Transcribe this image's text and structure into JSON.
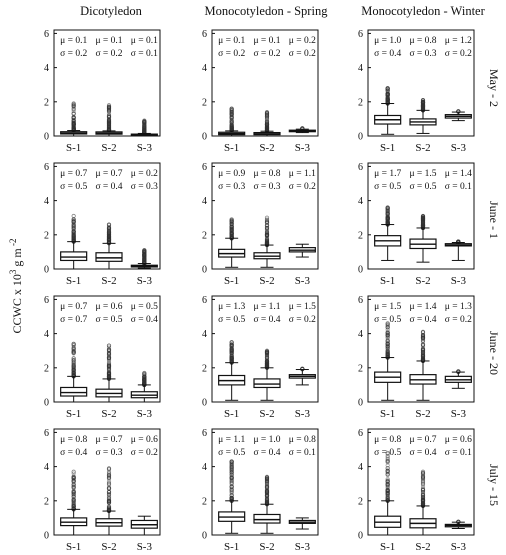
{
  "figure": {
    "columns": [
      "Dicotyledon",
      "Monocotyledon  - Spring",
      "Monocotyledon  - Winter"
    ],
    "rows": [
      "May - 2",
      "June - 1",
      "June - 20",
      "July - 15"
    ],
    "ylabel": "CCWC x 10",
    "ylabel_sup": "3",
    "ylabel_rest": " g m",
    "ylabel_sup2": " -2",
    "yticks": [
      "0",
      "2",
      "4",
      "6"
    ]
  },
  "chart_data": [
    {
      "type": "box",
      "row": "May - 2",
      "column": "Dicotyledon",
      "categories": [
        "S-1",
        "S-2",
        "S-3"
      ],
      "ylim": [
        0,
        6.2
      ],
      "series": [
        {
          "median": 0.17,
          "q1": 0.12,
          "q3": 0.25,
          "whisker_low": 0.0,
          "whisker_high": 0.32,
          "outlier_max": 1.9,
          "outlier_density": "dense"
        },
        {
          "median": 0.16,
          "q1": 0.11,
          "q3": 0.24,
          "whisker_low": 0.0,
          "whisker_high": 0.3,
          "outlier_max": 1.8,
          "outlier_density": "dense"
        },
        {
          "median": 0.08,
          "q1": 0.05,
          "q3": 0.11,
          "whisker_low": 0.0,
          "whisker_high": 0.15,
          "outlier_max": 0.9,
          "outlier_density": "dense"
        }
      ],
      "mu": [
        "μ = 0.1",
        "μ = 0.1",
        "μ = 0.1"
      ],
      "sigma": [
        "σ = 0.2",
        "σ = 0.2",
        "σ = 0.1"
      ]
    },
    {
      "type": "box",
      "row": "May - 2",
      "column": "Monocotyledon  - Spring",
      "categories": [
        "S-1",
        "S-2",
        "S-3"
      ],
      "ylim": [
        0,
        6.2
      ],
      "series": [
        {
          "median": 0.14,
          "q1": 0.08,
          "q3": 0.22,
          "whisker_low": 0.0,
          "whisker_high": 0.3,
          "outlier_max": 1.6,
          "outlier_density": "dense"
        },
        {
          "median": 0.13,
          "q1": 0.08,
          "q3": 0.2,
          "whisker_low": 0.0,
          "whisker_high": 0.28,
          "outlier_max": 1.4,
          "outlier_density": "dense"
        },
        {
          "median": 0.3,
          "q1": 0.27,
          "q3": 0.34,
          "whisker_low": 0.2,
          "whisker_high": 0.4,
          "outlier_max": 0.45,
          "outlier_density": "sparse"
        }
      ],
      "mu": [
        "μ = 0.1",
        "μ = 0.1",
        "μ = 0.2"
      ],
      "sigma": [
        "σ = 0.2",
        "σ = 0.2",
        "σ = 0.2"
      ]
    },
    {
      "type": "box",
      "row": "May - 2",
      "column": "Monocotyledon  - Winter",
      "categories": [
        "S-1",
        "S-2",
        "S-3"
      ],
      "ylim": [
        0,
        6.2
      ],
      "series": [
        {
          "median": 0.95,
          "q1": 0.7,
          "q3": 1.2,
          "whisker_low": 0.1,
          "whisker_high": 1.9,
          "outlier_max": 2.8,
          "outlier_density": "dense"
        },
        {
          "median": 0.82,
          "q1": 0.65,
          "q3": 1.0,
          "whisker_low": 0.15,
          "whisker_high": 1.5,
          "outlier_max": 2.1,
          "outlier_density": "dense"
        },
        {
          "median": 1.15,
          "q1": 1.05,
          "q3": 1.25,
          "whisker_low": 0.9,
          "whisker_high": 1.4,
          "outlier_max": 1.45,
          "outlier_density": "sparse"
        }
      ],
      "mu": [
        "μ = 1.0",
        "μ = 0.8",
        "μ = 1.2"
      ],
      "sigma": [
        "σ = 0.4",
        "σ = 0.3",
        "σ = 0.2"
      ]
    },
    {
      "type": "box",
      "row": "June - 1",
      "column": "Dicotyledon",
      "categories": [
        "S-1",
        "S-2",
        "S-3"
      ],
      "ylim": [
        0,
        6.2
      ],
      "series": [
        {
          "median": 0.7,
          "q1": 0.5,
          "q3": 1.0,
          "whisker_low": 0.0,
          "whisker_high": 1.6,
          "outlier_max": 3.1,
          "outlier_density": "dense"
        },
        {
          "median": 0.65,
          "q1": 0.45,
          "q3": 0.95,
          "whisker_low": 0.0,
          "whisker_high": 1.5,
          "outlier_max": 2.6,
          "outlier_density": "dense"
        },
        {
          "median": 0.17,
          "q1": 0.12,
          "q3": 0.22,
          "whisker_low": 0.05,
          "whisker_high": 0.32,
          "outlier_max": 1.1,
          "outlier_density": "dense"
        }
      ],
      "mu": [
        "μ = 0.7",
        "μ = 0.7",
        "μ = 0.2"
      ],
      "sigma": [
        "σ = 0.5",
        "σ = 0.4",
        "σ = 0.3"
      ]
    },
    {
      "type": "box",
      "row": "June - 1",
      "column": "Monocotyledon  - Spring",
      "categories": [
        "S-1",
        "S-2",
        "S-3"
      ],
      "ylim": [
        0,
        6.2
      ],
      "series": [
        {
          "median": 0.9,
          "q1": 0.7,
          "q3": 1.15,
          "whisker_low": 0.1,
          "whisker_high": 1.8,
          "outlier_max": 2.9,
          "outlier_density": "dense"
        },
        {
          "median": 0.75,
          "q1": 0.6,
          "q3": 0.95,
          "whisker_low": 0.1,
          "whisker_high": 1.4,
          "outlier_max": 3.0,
          "outlier_density": "dense"
        },
        {
          "median": 1.1,
          "q1": 1.0,
          "q3": 1.25,
          "whisker_low": 0.7,
          "whisker_high": 1.45,
          "outlier_max": 1.45,
          "outlier_density": "sparse"
        }
      ],
      "mu": [
        "μ = 0.9",
        "μ = 0.8",
        "μ = 1.1"
      ],
      "sigma": [
        "σ = 0.3",
        "σ = 0.3",
        "σ = 0.2"
      ]
    },
    {
      "type": "box",
      "row": "June - 1",
      "column": "Monocotyledon  - Winter",
      "categories": [
        "S-1",
        "S-2",
        "S-3"
      ],
      "ylim": [
        0,
        6.2
      ],
      "series": [
        {
          "median": 1.65,
          "q1": 1.35,
          "q3": 1.95,
          "whisker_low": 0.5,
          "whisker_high": 2.6,
          "outlier_max": 3.6,
          "outlier_density": "dense"
        },
        {
          "median": 1.45,
          "q1": 1.2,
          "q3": 1.75,
          "whisker_low": 0.4,
          "whisker_high": 2.4,
          "outlier_max": 3.1,
          "outlier_density": "dense"
        },
        {
          "median": 1.4,
          "q1": 1.35,
          "q3": 1.48,
          "whisker_low": 0.5,
          "whisker_high": 1.55,
          "outlier_max": 1.6,
          "outlier_density": "dense"
        }
      ],
      "mu": [
        "μ = 1.7",
        "μ = 1.5",
        "μ = 1.4"
      ],
      "sigma": [
        "σ = 0.5",
        "σ = 0.5",
        "σ = 0.1"
      ]
    },
    {
      "type": "box",
      "row": "June - 20",
      "column": "Dicotyledon",
      "categories": [
        "S-1",
        "S-2",
        "S-3"
      ],
      "ylim": [
        0,
        6.2
      ],
      "series": [
        {
          "median": 0.55,
          "q1": 0.35,
          "q3": 0.85,
          "whisker_low": 0.0,
          "whisker_high": 1.5,
          "outlier_max": 3.4,
          "outlier_density": "dense"
        },
        {
          "median": 0.5,
          "q1": 0.3,
          "q3": 0.75,
          "whisker_low": 0.0,
          "whisker_high": 1.35,
          "outlier_max": 3.3,
          "outlier_density": "dense"
        },
        {
          "median": 0.4,
          "q1": 0.25,
          "q3": 0.6,
          "whisker_low": 0.0,
          "whisker_high": 1.0,
          "outlier_max": 1.7,
          "outlier_density": "dense"
        }
      ],
      "mu": [
        "μ = 0.7",
        "μ = 0.6",
        "μ = 0.5"
      ],
      "sigma": [
        "σ = 0.7",
        "σ = 0.5",
        "σ = 0.4"
      ]
    },
    {
      "type": "box",
      "row": "June - 20",
      "column": "Monocotyledon  - Spring",
      "categories": [
        "S-1",
        "S-2",
        "S-3"
      ],
      "ylim": [
        0,
        6.2
      ],
      "series": [
        {
          "median": 1.25,
          "q1": 1.0,
          "q3": 1.55,
          "whisker_low": 0.1,
          "whisker_high": 2.3,
          "outlier_max": 3.5,
          "outlier_density": "dense"
        },
        {
          "median": 1.05,
          "q1": 0.85,
          "q3": 1.35,
          "whisker_low": 0.1,
          "whisker_high": 2.0,
          "outlier_max": 3.0,
          "outlier_density": "dense"
        },
        {
          "median": 1.5,
          "q1": 1.4,
          "q3": 1.6,
          "whisker_low": 1.0,
          "whisker_high": 1.9,
          "outlier_max": 1.95,
          "outlier_density": "sparse"
        }
      ],
      "mu": [
        "μ = 1.3",
        "μ = 1.1",
        "μ = 1.5"
      ],
      "sigma": [
        "σ = 0.5",
        "σ = 0.4",
        "σ = 0.2"
      ]
    },
    {
      "type": "box",
      "row": "June - 20",
      "column": "Monocotyledon  - Winter",
      "categories": [
        "S-1",
        "S-2",
        "S-3"
      ],
      "ylim": [
        0,
        6.2
      ],
      "series": [
        {
          "median": 1.45,
          "q1": 1.15,
          "q3": 1.75,
          "whisker_low": 0.1,
          "whisker_high": 2.6,
          "outlier_max": 4.6,
          "outlier_density": "dense"
        },
        {
          "median": 1.3,
          "q1": 1.05,
          "q3": 1.6,
          "whisker_low": 0.1,
          "whisker_high": 2.4,
          "outlier_max": 4.1,
          "outlier_density": "dense"
        },
        {
          "median": 1.3,
          "q1": 1.15,
          "q3": 1.5,
          "whisker_low": 0.8,
          "whisker_high": 1.75,
          "outlier_max": 1.8,
          "outlier_density": "sparse"
        }
      ],
      "mu": [
        "μ = 1.5",
        "μ = 1.4",
        "μ = 1.3"
      ],
      "sigma": [
        "σ = 0.5",
        "σ = 0.4",
        "σ = 0.2"
      ]
    },
    {
      "type": "box",
      "row": "July - 15",
      "column": "Dicotyledon",
      "categories": [
        "S-1",
        "S-2",
        "S-3"
      ],
      "ylim": [
        0,
        6.2
      ],
      "series": [
        {
          "median": 0.75,
          "q1": 0.55,
          "q3": 1.0,
          "whisker_low": 0.0,
          "whisker_high": 1.5,
          "outlier_max": 3.7,
          "outlier_density": "dense"
        },
        {
          "median": 0.72,
          "q1": 0.52,
          "q3": 0.95,
          "whisker_low": 0.0,
          "whisker_high": 1.4,
          "outlier_max": 3.9,
          "outlier_density": "dense"
        },
        {
          "median": 0.6,
          "q1": 0.4,
          "q3": 0.85,
          "whisker_low": 0.0,
          "whisker_high": 1.1,
          "outlier_max": 1.1,
          "outlier_density": "sparse"
        }
      ],
      "mu": [
        "μ = 0.8",
        "μ = 0.7",
        "μ = 0.6"
      ],
      "sigma": [
        "σ = 0.4",
        "σ = 0.3",
        "σ = 0.2"
      ]
    },
    {
      "type": "box",
      "row": "July - 15",
      "column": "Monocotyledon  - Spring",
      "categories": [
        "S-1",
        "S-2",
        "S-3"
      ],
      "ylim": [
        0,
        6.2
      ],
      "series": [
        {
          "median": 1.05,
          "q1": 0.8,
          "q3": 1.35,
          "whisker_low": 0.1,
          "whisker_high": 2.0,
          "outlier_max": 4.3,
          "outlier_density": "dense"
        },
        {
          "median": 0.9,
          "q1": 0.7,
          "q3": 1.2,
          "whisker_low": 0.1,
          "whisker_high": 1.8,
          "outlier_max": 3.4,
          "outlier_density": "dense"
        },
        {
          "median": 0.75,
          "q1": 0.68,
          "q3": 0.85,
          "whisker_low": 0.35,
          "whisker_high": 1.0,
          "outlier_max": 0.3,
          "outlier_density": "low"
        }
      ],
      "mu": [
        "μ = 1.1",
        "μ = 1.0",
        "μ = 0.8"
      ],
      "sigma": [
        "σ = 0.5",
        "σ = 0.4",
        "σ = 0.1"
      ]
    },
    {
      "type": "box",
      "row": "July - 15",
      "column": "Monocotyledon  - Winter",
      "categories": [
        "S-1",
        "S-2",
        "S-3"
      ],
      "ylim": [
        0,
        6.2
      ],
      "series": [
        {
          "median": 0.75,
          "q1": 0.45,
          "q3": 1.1,
          "whisker_low": 0.0,
          "whisker_high": 2.0,
          "outlier_max": 4.8,
          "outlier_density": "dense"
        },
        {
          "median": 0.68,
          "q1": 0.42,
          "q3": 0.95,
          "whisker_low": 0.0,
          "whisker_high": 1.7,
          "outlier_max": 3.7,
          "outlier_density": "dense"
        },
        {
          "median": 0.55,
          "q1": 0.48,
          "q3": 0.62,
          "whisker_low": 0.38,
          "whisker_high": 0.75,
          "outlier_max": 0.78,
          "outlier_density": "sparse"
        }
      ],
      "mu": [
        "μ = 0.8",
        "μ = 0.7",
        "μ = 0.6"
      ],
      "sigma": [
        "σ = 0.5",
        "σ = 0.4",
        "σ = 0.1"
      ]
    }
  ]
}
